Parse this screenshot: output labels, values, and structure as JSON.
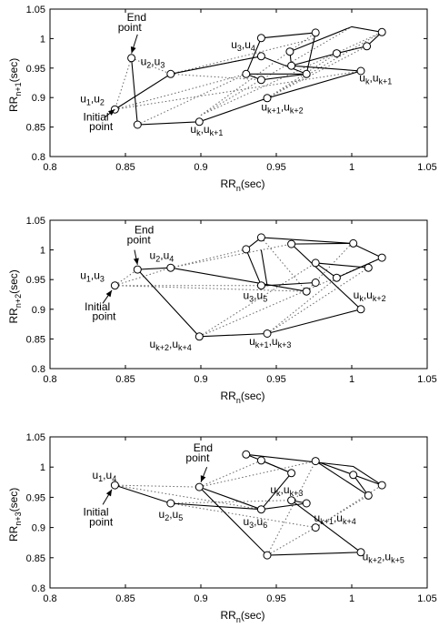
{
  "chart_data": [
    {
      "type": "scatter",
      "ylabel_base": "RR",
      "ylabel_sub": "n+1",
      "ylabel_suffix": "(sec)",
      "xlabel_base": "RR",
      "xlabel_sub": "n",
      "xlabel_suffix": "(sec)",
      "xlim": [
        0.8,
        1.05
      ],
      "ylim": [
        0.8,
        1.05
      ],
      "xticks": [
        "0.8",
        "0.85",
        "0.9",
        "0.95",
        "1",
        "1.05"
      ],
      "yticks": [
        "0.8",
        "0.85",
        "0.9",
        "0.95",
        "1",
        "1.05"
      ],
      "points": [
        [
          0.843,
          0.88
        ],
        [
          0.88,
          0.94
        ],
        [
          0.93,
          0.94
        ],
        [
          0.94,
          1.001
        ],
        [
          0.976,
          1.01
        ],
        [
          1.02,
          1.011
        ],
        [
          1.01,
          0.987
        ],
        [
          0.99,
          0.975
        ],
        [
          0.96,
          0.954
        ],
        [
          0.94,
          0.97
        ],
        [
          0.959,
          0.978
        ],
        [
          0.94,
          0.93
        ],
        [
          0.97,
          0.94
        ],
        [
          1.006,
          0.945
        ],
        [
          0.944,
          0.899
        ],
        [
          0.899,
          0.859
        ],
        [
          0.858,
          0.854
        ],
        [
          0.854,
          0.967
        ]
      ],
      "solid": [
        [
          [
            0.843,
            0.88
          ],
          [
            0.88,
            0.94
          ],
          [
            0.94,
            0.97
          ],
          [
            0.97,
            0.94
          ],
          [
            0.93,
            0.94
          ],
          [
            0.94,
            1.001
          ],
          [
            0.976,
            1.01
          ],
          [
            0.97,
            0.94
          ],
          [
            0.94,
            0.93
          ],
          [
            0.93,
            0.94
          ]
        ],
        [
          [
            0.959,
            0.978
          ],
          [
            1.0,
            1.02
          ],
          [
            1.02,
            1.011
          ],
          [
            1.01,
            0.987
          ],
          [
            0.99,
            0.975
          ],
          [
            0.96,
            0.954
          ],
          [
            0.959,
            0.978
          ]
        ],
        [
          [
            0.96,
            0.954
          ],
          [
            1.006,
            0.945
          ],
          [
            0.944,
            0.899
          ],
          [
            0.899,
            0.859
          ],
          [
            0.858,
            0.854
          ],
          [
            0.854,
            0.967
          ]
        ]
      ],
      "dotted": [
        [
          [
            0.854,
            0.967
          ],
          [
            0.88,
            0.94
          ]
        ],
        [
          [
            0.854,
            0.967
          ],
          [
            0.843,
            0.88
          ]
        ],
        [
          [
            0.88,
            0.94
          ],
          [
            0.94,
            0.97
          ]
        ],
        [
          [
            0.843,
            0.88
          ],
          [
            0.93,
            0.94
          ]
        ],
        [
          [
            0.843,
            0.88
          ],
          [
            1.006,
            0.945
          ]
        ],
        [
          [
            0.88,
            0.94
          ],
          [
            0.94,
            0.93
          ]
        ],
        [
          [
            0.88,
            0.94
          ],
          [
            0.975,
            1.0
          ]
        ],
        [
          [
            0.9,
            0.87
          ],
          [
            0.976,
            1.01
          ]
        ],
        [
          [
            0.9,
            0.87
          ],
          [
            1.0,
            1.02
          ]
        ],
        [
          [
            0.9,
            0.87
          ],
          [
            1.02,
            1.011
          ]
        ],
        [
          [
            0.944,
            0.899
          ],
          [
            1.01,
            0.987
          ]
        ],
        [
          [
            0.944,
            0.899
          ],
          [
            0.99,
            0.975
          ]
        ],
        [
          [
            0.944,
            0.899
          ],
          [
            1.02,
            1.011
          ]
        ],
        [
          [
            0.858,
            0.854
          ],
          [
            0.93,
            0.94
          ]
        ]
      ],
      "annotations": [
        {
          "text": "End",
          "x": 0.851,
          "y": 1.03
        },
        {
          "text": "point",
          "x": 0.845,
          "y": 1.013
        },
        {
          "text": "Initial",
          "x": 0.822,
          "y": 0.861
        },
        {
          "text": "point",
          "x": 0.826,
          "y": 0.845
        }
      ],
      "labels": [
        {
          "base": "u",
          "s1": "1",
          "sep": ",u",
          "s2": "2",
          "x": 0.82,
          "y": 0.892
        },
        {
          "base": "u",
          "s1": "2",
          "sep": ",u",
          "s2": "3",
          "x": 0.86,
          "y": 0.955
        },
        {
          "base": "u",
          "s1": "3",
          "sep": ",u",
          "s2": "4",
          "x": 0.92,
          "y": 0.984
        },
        {
          "base": "u",
          "s1": "k",
          "sep": ",u",
          "s2": "k+1",
          "x": 1.005,
          "y": 0.927
        },
        {
          "base": "u",
          "s1": "k+1",
          "sep": ",u",
          "s2": "k+2",
          "x": 0.94,
          "y": 0.878
        },
        {
          "base": "u",
          "s1": "k",
          "sep": ",u",
          "s2": "k+1",
          "x": 0.893,
          "y": 0.84
        }
      ],
      "arrows": [
        {
          "from": [
            0.858,
            1.007
          ],
          "to": [
            0.854,
            0.975
          ]
        },
        {
          "from": [
            0.836,
            0.866
          ],
          "to": [
            0.843,
            0.88
          ]
        }
      ]
    },
    {
      "type": "scatter",
      "ylabel_base": "RR",
      "ylabel_sub": "n+2",
      "ylabel_suffix": "(sec)",
      "xlabel_base": "RR",
      "xlabel_sub": "n",
      "xlabel_suffix": "(sec)",
      "xlim": [
        0.8,
        1.05
      ],
      "ylim": [
        0.8,
        1.05
      ],
      "xticks": [
        "0.8",
        "0.85",
        "0.9",
        "0.95",
        "1",
        "1.05"
      ],
      "yticks": [
        "0.8",
        "0.85",
        "0.9",
        "0.95",
        "1",
        "1.05"
      ],
      "points": [
        [
          0.843,
          0.94
        ],
        [
          0.858,
          0.967
        ],
        [
          0.88,
          0.97
        ],
        [
          0.94,
          0.94
        ],
        [
          0.97,
          0.93
        ],
        [
          0.93,
          1.001
        ],
        [
          0.94,
          1.021
        ],
        [
          1.001,
          1.011
        ],
        [
          1.02,
          0.987
        ],
        [
          1.011,
          0.97
        ],
        [
          0.99,
          0.953
        ],
        [
          0.976,
          0.978
        ],
        [
          0.96,
          1.01
        ],
        [
          0.976,
          0.945
        ],
        [
          1.006,
          0.9
        ],
        [
          0.944,
          0.859
        ],
        [
          0.899,
          0.854
        ]
      ],
      "solid": [
        [
          [
            0.88,
            0.97
          ],
          [
            0.858,
            0.967
          ],
          [
            0.899,
            0.854
          ],
          [
            0.944,
            0.859
          ],
          [
            1.006,
            0.9
          ],
          [
            0.96,
            1.01
          ],
          [
            1.0,
            1.011
          ],
          [
            1.02,
            0.987
          ],
          [
            0.99,
            0.953
          ],
          [
            0.976,
            0.978
          ],
          [
            1.011,
            0.97
          ]
        ],
        [
          [
            0.88,
            0.97
          ],
          [
            0.97,
            0.93
          ]
        ],
        [
          [
            0.94,
            0.94
          ],
          [
            0.93,
            1.001
          ],
          [
            0.94,
            1.021
          ],
          [
            1.0,
            1.011
          ]
        ],
        [
          [
            0.94,
            0.94
          ],
          [
            0.944,
            0.94
          ],
          [
            0.94,
            1.0
          ]
        ],
        [
          [
            0.976,
            0.945
          ],
          [
            0.944,
            0.94
          ]
        ]
      ],
      "dotted": [
        [
          [
            0.843,
            0.94
          ],
          [
            0.88,
            0.97
          ]
        ],
        [
          [
            0.843,
            0.94
          ],
          [
            0.858,
            0.967
          ]
        ],
        [
          [
            0.843,
            0.94
          ],
          [
            0.97,
            0.93
          ]
        ],
        [
          [
            0.843,
            0.94
          ],
          [
            0.94,
            0.94
          ]
        ],
        [
          [
            0.88,
            0.97
          ],
          [
            0.93,
            1.001
          ]
        ],
        [
          [
            0.88,
            0.97
          ],
          [
            0.96,
            1.01
          ]
        ],
        [
          [
            0.899,
            0.854
          ],
          [
            0.976,
            0.978
          ]
        ],
        [
          [
            0.944,
            0.859
          ],
          [
            1.011,
            0.97
          ]
        ],
        [
          [
            0.944,
            0.859
          ],
          [
            0.99,
            0.953
          ]
        ],
        [
          [
            0.97,
            0.93
          ],
          [
            0.94,
            1.021
          ]
        ],
        [
          [
            0.97,
            0.93
          ],
          [
            1.0,
            1.011
          ]
        ],
        [
          [
            0.899,
            0.854
          ],
          [
            1.02,
            0.987
          ]
        ]
      ],
      "annotations": [
        {
          "text": "End",
          "x": 0.856,
          "y": 1.028
        },
        {
          "text": "point",
          "x": 0.851,
          "y": 1.011
        },
        {
          "text": "Initial",
          "x": 0.823,
          "y": 0.898
        },
        {
          "text": "point",
          "x": 0.828,
          "y": 0.882
        }
      ],
      "labels": [
        {
          "base": "u",
          "s1": "1",
          "sep": ",u",
          "s2": "3",
          "x": 0.82,
          "y": 0.951
        },
        {
          "base": "u",
          "s1": "2",
          "sep": ",u",
          "s2": "4",
          "x": 0.866,
          "y": 0.985
        },
        {
          "base": "u",
          "s1": "3",
          "sep": ",u",
          "s2": "5",
          "x": 0.928,
          "y": 0.917
        },
        {
          "base": "u",
          "s1": "k",
          "sep": ",u",
          "s2": "k+2",
          "x": 1.001,
          "y": 0.918
        },
        {
          "base": "u",
          "s1": "k+2",
          "sep": ",u",
          "s2": "k+4",
          "x": 0.866,
          "y": 0.835
        },
        {
          "base": "u",
          "s1": "k+1",
          "sep": ",u",
          "s2": "k+3",
          "x": 0.932,
          "y": 0.84
        }
      ],
      "arrows": [
        {
          "from": [
            0.856,
            1.0
          ],
          "to": [
            0.858,
            0.975
          ]
        },
        {
          "from": [
            0.835,
            0.91
          ],
          "to": [
            0.841,
            0.932
          ]
        }
      ]
    },
    {
      "type": "scatter",
      "ylabel_base": "RR",
      "ylabel_sub": "n+3",
      "ylabel_suffix": "(sec)",
      "xlabel_base": "RR",
      "xlabel_sub": "n",
      "xlabel_suffix": "(sec)",
      "xlim": [
        0.8,
        1.05
      ],
      "ylim": [
        0.8,
        1.05
      ],
      "xticks": [
        "0.8",
        "0.85",
        "0.9",
        "0.95",
        "1",
        "1.05"
      ],
      "yticks": [
        "0.8",
        "0.85",
        "0.9",
        "0.95",
        "1",
        "1.05"
      ],
      "points": [
        [
          0.843,
          0.97
        ],
        [
          0.88,
          0.94
        ],
        [
          0.899,
          0.967
        ],
        [
          0.94,
          0.93
        ],
        [
          0.97,
          0.94
        ],
        [
          0.93,
          1.021
        ],
        [
          0.94,
          1.011
        ],
        [
          0.976,
          1.01
        ],
        [
          1.001,
          0.987
        ],
        [
          1.02,
          0.97
        ],
        [
          1.011,
          0.953
        ],
        [
          0.96,
          0.945
        ],
        [
          0.976,
          0.9
        ],
        [
          0.944,
          0.854
        ],
        [
          1.006,
          0.859
        ],
        [
          0.96,
          0.99
        ]
      ],
      "solid": [
        [
          [
            0.843,
            0.97
          ],
          [
            0.88,
            0.94
          ],
          [
            0.94,
            0.93
          ],
          [
            0.899,
            0.967
          ],
          [
            0.944,
            0.854
          ],
          [
            1.006,
            0.859
          ],
          [
            0.96,
            0.945
          ],
          [
            0.97,
            0.94
          ],
          [
            0.94,
            0.93
          ]
        ],
        [
          [
            0.94,
            0.93
          ],
          [
            0.96,
            0.99
          ],
          [
            0.94,
            1.011
          ],
          [
            0.93,
            1.021
          ],
          [
            1.001,
            1.001
          ],
          [
            1.02,
            0.97
          ],
          [
            0.976,
            1.01
          ],
          [
            1.011,
            0.953
          ],
          [
            1.001,
            0.987
          ]
        ],
        [
          [
            0.96,
            0.99
          ],
          [
            0.94,
            1.011
          ]
        ]
      ],
      "dotted": [
        [
          [
            0.843,
            0.97
          ],
          [
            0.94,
            0.93
          ]
        ],
        [
          [
            0.843,
            0.97
          ],
          [
            0.899,
            0.967
          ]
        ],
        [
          [
            0.88,
            0.94
          ],
          [
            0.96,
            0.945
          ]
        ],
        [
          [
            0.88,
            0.94
          ],
          [
            0.976,
            0.9
          ]
        ],
        [
          [
            0.899,
            0.967
          ],
          [
            0.976,
            1.01
          ]
        ],
        [
          [
            0.899,
            0.967
          ],
          [
            0.94,
            1.011
          ]
        ],
        [
          [
            0.944,
            0.854
          ],
          [
            0.976,
            0.9
          ]
        ],
        [
          [
            0.976,
            0.9
          ],
          [
            1.011,
            0.953
          ]
        ],
        [
          [
            0.976,
            0.9
          ],
          [
            1.02,
            0.97
          ]
        ],
        [
          [
            0.944,
            0.854
          ],
          [
            0.976,
            1.01
          ]
        ]
      ],
      "annotations": [
        {
          "text": "End",
          "x": 0.895,
          "y": 1.026
        },
        {
          "text": "point",
          "x": 0.89,
          "y": 1.009
        },
        {
          "text": "Initial",
          "x": 0.822,
          "y": 0.92
        },
        {
          "text": "point",
          "x": 0.826,
          "y": 0.903
        }
      ],
      "labels": [
        {
          "base": "u",
          "s1": "1",
          "sep": ",u",
          "s2": "4",
          "x": 0.828,
          "y": 0.981
        },
        {
          "base": "u",
          "s1": "2",
          "sep": ",u",
          "s2": "5",
          "x": 0.872,
          "y": 0.916
        },
        {
          "base": "u",
          "s1": "3",
          "sep": ",u",
          "s2": "6",
          "x": 0.928,
          "y": 0.904
        },
        {
          "base": "u",
          "s1": "k",
          "sep": ",u",
          "s2": "k+3",
          "x": 0.946,
          "y": 0.957
        },
        {
          "base": "u",
          "s1": "k+1",
          "sep": ",u",
          "s2": "k+4",
          "x": 0.975,
          "y": 0.91
        },
        {
          "base": "u",
          "s1": "k+2",
          "sep": ",u",
          "s2": "k+5",
          "x": 1.007,
          "y": 0.846
        }
      ],
      "arrows": [
        {
          "from": [
            0.904,
            1.0
          ],
          "to": [
            0.9,
            0.975
          ]
        },
        {
          "from": [
            0.835,
            0.938
          ],
          "to": [
            0.841,
            0.963
          ]
        }
      ]
    }
  ]
}
